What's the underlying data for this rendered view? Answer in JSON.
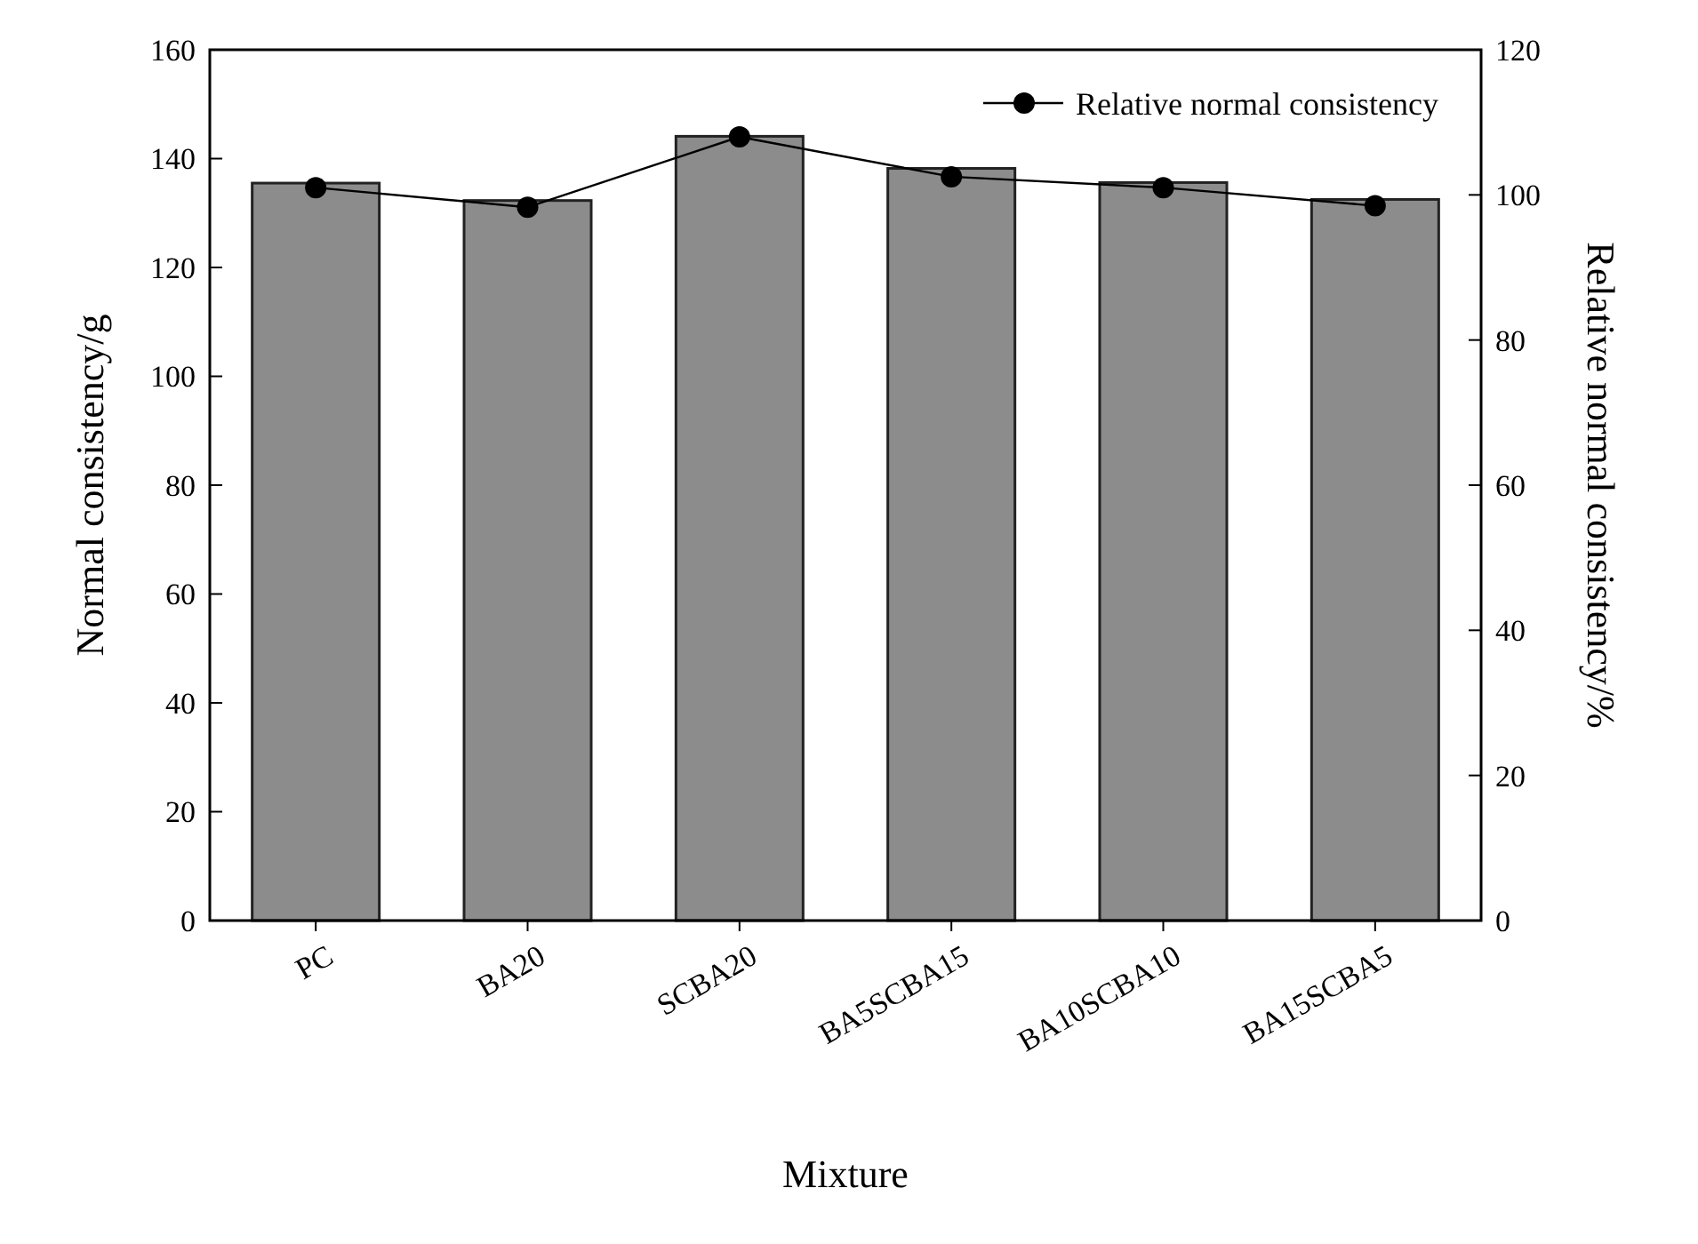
{
  "chart_data": {
    "type": "bar",
    "xlabel": "Mixture",
    "ylabel": "Normal consistency/g",
    "y2label": "Relative normal consistency/%",
    "categories": [
      "PC",
      "BA20",
      "SCBA20",
      "BA5SCBA15",
      "BA10SCBA10",
      "BA15SCBA5"
    ],
    "series": [
      {
        "color": "#8c8c8c",
        "values": [
          135.5,
          132.3,
          144.1,
          138.2,
          135.6,
          132.5
        ]
      },
      {
        "type": "line",
        "name": "Relative normal consistency",
        "color": "#000000",
        "axis": "y2",
        "marker": "circle",
        "line_style": "solid",
        "values": [
          101,
          98.3,
          108,
          102.5,
          101,
          98.5
        ]
      }
    ],
    "ylim": [
      0,
      160
    ],
    "yticks": [
      0,
      20,
      40,
      60,
      80,
      100,
      120,
      140,
      160
    ],
    "y2lim": [
      0,
      120
    ],
    "y2ticks": [
      0,
      20,
      40,
      60,
      80,
      100,
      120
    ],
    "grid": false,
    "legend": "top right"
  }
}
